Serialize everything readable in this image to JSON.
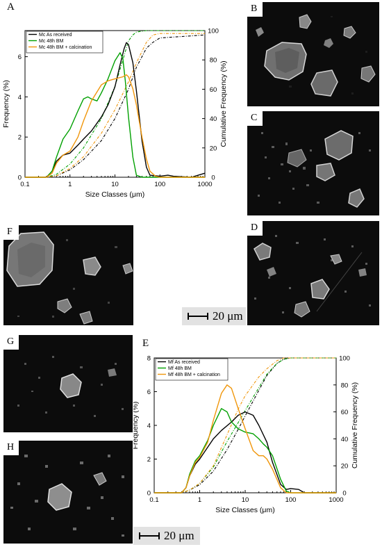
{
  "panels": {
    "A": "A",
    "B": "B",
    "C": "C",
    "D": "D",
    "E": "E",
    "F": "F",
    "G": "G",
    "H": "H"
  },
  "scalebars": [
    "20 μm",
    "20 μm"
  ],
  "chart_data": [
    {
      "type": "line",
      "panel": "A",
      "xlabel": "Size Classes (μm)",
      "ylabel": "Frequency (%)",
      "y2label": "Cumulative Frequency (%)",
      "xscale": "log",
      "xlim": [
        0.1,
        1000
      ],
      "ylim": [
        0,
        7.3
      ],
      "y2lim": [
        0,
        100
      ],
      "xticks": [
        "0.1",
        "1",
        "10",
        "100",
        "1000"
      ],
      "yticks": [
        "0",
        "2",
        "4",
        "6"
      ],
      "y2ticks": [
        "0",
        "20",
        "40",
        "60",
        "80",
        "100"
      ],
      "legend_position": "top-left",
      "colors": {
        "as_received": "#000000",
        "bm": "#00a000",
        "calc": "#f0960a"
      },
      "series": [
        {
          "name": "Mc  As received",
          "color": "#000000",
          "x": [
            0.1,
            0.3,
            0.4,
            0.5,
            0.7,
            1,
            1.5,
            2,
            3,
            5,
            7,
            10,
            13,
            16,
            18,
            20,
            25,
            30,
            40,
            50,
            60,
            100,
            150,
            200,
            500,
            1000
          ],
          "y": [
            0,
            0,
            0.3,
            0.8,
            1.1,
            1.2,
            1.6,
            1.9,
            2.3,
            3.0,
            3.6,
            4.5,
            5.6,
            6.4,
            6.7,
            6.6,
            5.7,
            4.3,
            1.8,
            0.5,
            0.1,
            0.05,
            0.1,
            0.05,
            0,
            0.2
          ]
        },
        {
          "name": "Mc 48h BM",
          "color": "#00a000",
          "x": [
            0.1,
            0.3,
            0.4,
            0.5,
            0.7,
            1,
            1.5,
            2,
            2.5,
            3,
            4,
            5,
            7,
            10,
            13,
            15,
            17,
            20,
            25,
            30,
            40,
            100,
            1000
          ],
          "y": [
            0,
            0,
            0.3,
            1.0,
            1.9,
            2.4,
            3.3,
            3.9,
            4.0,
            3.9,
            3.8,
            4.2,
            4.9,
            5.8,
            6.2,
            5.9,
            4.8,
            3.0,
            1.0,
            0.1,
            0,
            0,
            0
          ]
        },
        {
          "name": "Mc 48h BM + calcination",
          "color": "#f0960a",
          "x": [
            0.1,
            0.3,
            0.4,
            0.5,
            0.7,
            1,
            1.5,
            2,
            3,
            5,
            7,
            10,
            15,
            18,
            20,
            25,
            30,
            40,
            50,
            60,
            80,
            100,
            1000
          ],
          "y": [
            0,
            0,
            0.2,
            0.7,
            1.1,
            1.3,
            2.0,
            2.8,
            3.8,
            4.6,
            4.8,
            4.9,
            5.0,
            5.1,
            5.0,
            4.4,
            3.6,
            2.0,
            0.9,
            0.3,
            0.05,
            0,
            0
          ]
        }
      ],
      "cumulative": [
        {
          "name": "Mc  As received",
          "color": "#000000",
          "x": [
            0.1,
            0.3,
            0.5,
            1,
            2,
            5,
            10,
            20,
            30,
            50,
            70,
            100,
            1000
          ],
          "y": [
            0,
            0,
            1,
            5,
            12,
            25,
            40,
            60,
            75,
            88,
            92,
            95,
            97
          ]
        },
        {
          "name": "Mc 48h BM",
          "color": "#00a000",
          "x": [
            0.1,
            0.3,
            0.5,
            1,
            2,
            5,
            10,
            15,
            20,
            25,
            30,
            50,
            1000
          ],
          "y": [
            0,
            0,
            2,
            9,
            20,
            40,
            62,
            80,
            93,
            97,
            99,
            100,
            100
          ]
        },
        {
          "name": "Mc 48h BM + calcination",
          "color": "#f0960a",
          "x": [
            0.1,
            0.3,
            0.5,
            1,
            2,
            5,
            10,
            20,
            30,
            50,
            70,
            100,
            1000
          ],
          "y": [
            0,
            0,
            1,
            6,
            14,
            30,
            46,
            65,
            78,
            92,
            97,
            98,
            98
          ]
        }
      ]
    },
    {
      "type": "line",
      "panel": "E",
      "xlabel": "Size Classes (μm)",
      "ylabel": "Frequency (%)",
      "y2label": "Cumulative Frequency (%)",
      "xscale": "log",
      "xlim": [
        0.1,
        1000
      ],
      "ylim": [
        0,
        8
      ],
      "y2lim": [
        0,
        100
      ],
      "xticks": [
        "0.1",
        "1",
        "10",
        "100",
        "1000"
      ],
      "yticks": [
        "0",
        "2",
        "4",
        "6",
        "8"
      ],
      "y2ticks": [
        "0",
        "20",
        "40",
        "60",
        "80",
        "100"
      ],
      "legend_position": "top-left",
      "series": [
        {
          "name": "Mf As received",
          "color": "#000000",
          "x": [
            0.1,
            0.4,
            0.5,
            0.6,
            0.8,
            1,
            1.5,
            2,
            3,
            5,
            7,
            10,
            15,
            20,
            30,
            40,
            60,
            80,
            100,
            150,
            200,
            1000
          ],
          "y": [
            0,
            0,
            0.3,
            1.0,
            1.7,
            2.0,
            2.7,
            3.2,
            3.7,
            4.2,
            4.6,
            4.8,
            4.6,
            4.0,
            3.0,
            1.8,
            0.5,
            0.2,
            0.25,
            0.2,
            0,
            0
          ]
        },
        {
          "name": "Mf 48h BM",
          "color": "#00a000",
          "x": [
            0.1,
            0.4,
            0.5,
            0.6,
            0.8,
            1,
            1.5,
            2,
            3,
            4,
            5,
            7,
            10,
            15,
            20,
            25,
            30,
            40,
            60,
            80,
            100,
            1000
          ],
          "y": [
            0,
            0,
            0.3,
            1.1,
            1.9,
            2.2,
            3.1,
            4.0,
            5.0,
            4.8,
            4.2,
            3.8,
            3.6,
            3.5,
            3.2,
            2.9,
            2.7,
            2.2,
            0.8,
            0.1,
            0,
            0
          ]
        },
        {
          "name": "Mf 48h BM + calcination",
          "color": "#f0960a",
          "x": [
            0.1,
            0.4,
            0.5,
            0.6,
            0.8,
            1,
            1.5,
            2,
            3,
            4,
            5,
            7,
            10,
            15,
            20,
            25,
            30,
            40,
            60,
            80,
            100,
            1000
          ],
          "y": [
            0,
            0,
            0.3,
            1.0,
            1.8,
            2.1,
            3.0,
            4.3,
            5.9,
            6.4,
            6.2,
            5.0,
            3.8,
            2.5,
            2.2,
            2.2,
            2.0,
            1.4,
            0.3,
            0,
            0,
            0
          ]
        }
      ],
      "cumulative": [
        {
          "name": "Mf As received",
          "color": "#000000",
          "x": [
            0.1,
            0.4,
            0.6,
            1,
            2,
            4,
            7,
            10,
            20,
            30,
            50,
            70,
            100,
            1000
          ],
          "y": [
            0,
            0,
            2,
            6,
            16,
            32,
            47,
            57,
            76,
            87,
            96,
            99,
            100,
            100
          ]
        },
        {
          "name": "Mf 48h BM",
          "color": "#00a000",
          "x": [
            0.1,
            0.4,
            0.6,
            1,
            2,
            4,
            7,
            10,
            20,
            30,
            50,
            70,
            100,
            1000
          ],
          "y": [
            0,
            0,
            2,
            7,
            19,
            38,
            52,
            61,
            78,
            88,
            96,
            99,
            100,
            100
          ]
        },
        {
          "name": "Mf 48h BM + calcination",
          "color": "#f0960a",
          "x": [
            0.1,
            0.4,
            0.6,
            1,
            2,
            4,
            7,
            10,
            20,
            30,
            50,
            70,
            100,
            1000
          ],
          "y": [
            0,
            0,
            2,
            7,
            20,
            43,
            62,
            72,
            86,
            92,
            98,
            100,
            100,
            100
          ]
        }
      ]
    }
  ]
}
